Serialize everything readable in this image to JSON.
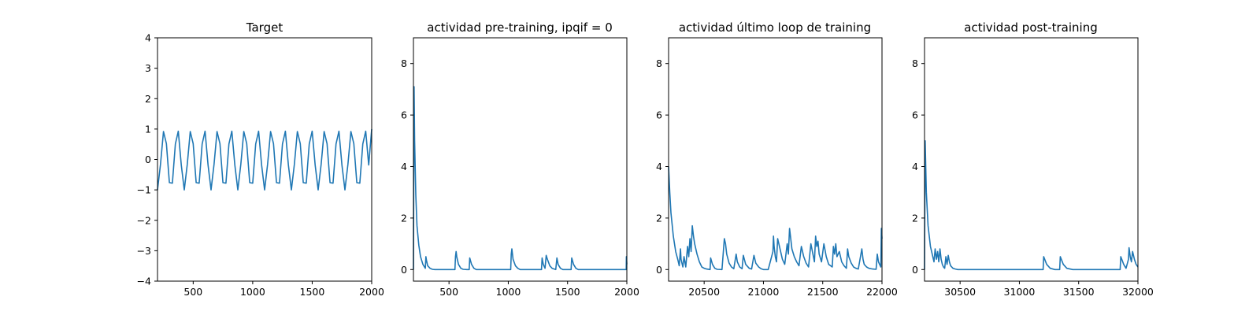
{
  "chart_data": [
    {
      "type": "line",
      "title": "Target",
      "xlim": [
        200,
        2000
      ],
      "ylim": [
        -4,
        4
      ],
      "xticks": [
        500,
        1000,
        1500,
        2000
      ],
      "yticks": [
        -4,
        -3,
        -2,
        -1,
        0,
        1,
        2,
        3,
        4
      ],
      "color": "#1f77b4",
      "series": [
        {
          "x": [
            200,
            225,
            250,
            275,
            300,
            325,
            350,
            375,
            400,
            425,
            450,
            475,
            500,
            525,
            550,
            575,
            600,
            625,
            650,
            675,
            700,
            725,
            750,
            775,
            800,
            825,
            850,
            875,
            900,
            925,
            950,
            975,
            1000,
            1025,
            1050,
            1075,
            1100,
            1125,
            1150,
            1175,
            1200,
            1225,
            1250,
            1275,
            1300,
            1325,
            1350,
            1375,
            1400,
            1425,
            1450,
            1475,
            1500,
            1525,
            1550,
            1575,
            1600,
            1625,
            1650,
            1675,
            1700,
            1725,
            1750,
            1775,
            1800,
            1825,
            1850,
            1875,
            1900,
            1925,
            1950,
            1975,
            2000
          ],
          "y": [
            -1,
            -0.16,
            0.92,
            0.52,
            -0.76,
            -0.78,
            0.51,
            0.93,
            -0.18,
            -1,
            -0.16,
            0.92,
            0.52,
            -0.76,
            -0.78,
            0.51,
            0.93,
            -0.18,
            -1,
            -0.16,
            0.92,
            0.52,
            -0.76,
            -0.78,
            0.51,
            0.93,
            -0.18,
            -1,
            -0.16,
            0.92,
            0.52,
            -0.76,
            -0.78,
            0.51,
            0.93,
            -0.18,
            -1,
            -0.16,
            0.92,
            0.52,
            -0.76,
            -0.78,
            0.51,
            0.93,
            -0.18,
            -1,
            -0.16,
            0.92,
            0.52,
            -0.76,
            -0.78,
            0.51,
            0.93,
            -0.18,
            -1,
            -0.16,
            0.92,
            0.52,
            -0.76,
            -0.78,
            0.51,
            0.93,
            -0.18,
            -1,
            -0.16,
            0.92,
            0.52,
            -0.76,
            -0.78,
            0.51,
            0.93,
            -0.18,
            1
          ]
        }
      ]
    },
    {
      "type": "line",
      "title": "actividad pre-training, ipqif = 0",
      "xlim": [
        200,
        2000
      ],
      "ylim": [
        -0.45,
        9
      ],
      "xticks": [
        500,
        1000,
        1500,
        2000
      ],
      "yticks": [
        0,
        2,
        4,
        6,
        8
      ],
      "color": "#1f77b4",
      "series": [
        {
          "x": [
            200,
            205,
            210,
            220,
            230,
            245,
            260,
            280,
            300,
            305,
            310,
            320,
            340,
            360,
            380,
            400,
            550,
            555,
            560,
            565,
            570,
            580,
            600,
            620,
            650,
            670,
            675,
            690,
            710,
            730,
            1020,
            1025,
            1030,
            1040,
            1060,
            1080,
            1100,
            1280,
            1285,
            1295,
            1310,
            1320,
            1330,
            1350,
            1370,
            1400,
            1410,
            1420,
            1440,
            1460,
            1530,
            1535,
            1550,
            1570,
            1590,
            1995,
            1996,
            2000
          ],
          "y": [
            0,
            7.1,
            5.0,
            2.9,
            1.7,
            0.95,
            0.5,
            0.2,
            0.05,
            0.5,
            0.35,
            0.15,
            0.05,
            0.01,
            0,
            0,
            0,
            0.5,
            0.7,
            0.5,
            0.4,
            0.2,
            0.05,
            0.01,
            0,
            0,
            0.45,
            0.2,
            0.05,
            0,
            0,
            0.6,
            0.8,
            0.4,
            0.15,
            0.05,
            0,
            0,
            0.45,
            0.2,
            0.05,
            0.55,
            0.4,
            0.15,
            0.05,
            0,
            0.45,
            0.2,
            0.05,
            0,
            0,
            0.45,
            0.2,
            0.05,
            0,
            0,
            0.5,
            0.2
          ]
        }
      ]
    },
    {
      "type": "line",
      "title": "actividad último loop de training",
      "xlim": [
        20200,
        22000
      ],
      "ylim": [
        -0.45,
        9
      ],
      "xticks": [
        20500,
        21000,
        21500,
        22000
      ],
      "yticks": [
        0,
        2,
        4,
        6,
        8
      ],
      "color": "#1f77b4",
      "series": [
        {
          "x": [
            20200,
            20210,
            20220,
            20240,
            20260,
            20280,
            20290,
            20300,
            20305,
            20320,
            20330,
            20345,
            20360,
            20370,
            20380,
            20390,
            20400,
            20410,
            20420,
            20440,
            20460,
            20480,
            20500,
            20520,
            20550,
            20555,
            20570,
            20590,
            20610,
            20650,
            20670,
            20680,
            20690,
            20710,
            20730,
            20750,
            20770,
            20780,
            20800,
            20820,
            20830,
            20850,
            20880,
            20900,
            20920,
            20935,
            20960,
            20980,
            21000,
            21040,
            21080,
            21085,
            21090,
            21100,
            21110,
            21120,
            21140,
            21160,
            21180,
            21200,
            21210,
            21220,
            21230,
            21240,
            21260,
            21280,
            21300,
            21320,
            21340,
            21360,
            21380,
            21400,
            21430,
            21440,
            21450,
            21460,
            21470,
            21490,
            21510,
            21530,
            21550,
            21580,
            21590,
            21600,
            21610,
            21620,
            21640,
            21660,
            21680,
            21700,
            21710,
            21720,
            21740,
            21760,
            21780,
            21800,
            21830,
            21840,
            21850,
            21870,
            21890,
            21920,
            21950,
            21960,
            21970,
            21990,
            21995,
            22000
          ],
          "y": [
            4.0,
            3.0,
            2.2,
            1.3,
            0.7,
            0.35,
            0.15,
            0.8,
            0.4,
            0.1,
            0.5,
            0.1,
            0.9,
            0.5,
            1.2,
            0.7,
            1.7,
            1.3,
            1.0,
            0.6,
            0.3,
            0.1,
            0.05,
            0.02,
            0,
            0.45,
            0.2,
            0.05,
            0.01,
            0,
            1.2,
            1.0,
            0.6,
            0.25,
            0.1,
            0.03,
            0.6,
            0.3,
            0.1,
            0.03,
            0.55,
            0.2,
            0.05,
            0.02,
            0.55,
            0.25,
            0.1,
            0.03,
            0,
            0,
            0.7,
            1.3,
            0.9,
            0.5,
            0.3,
            1.2,
            0.8,
            0.4,
            0.2,
            1.0,
            0.6,
            1.6,
            1.2,
            0.8,
            0.5,
            0.3,
            0.15,
            0.9,
            0.5,
            0.25,
            0.1,
            1.0,
            0.3,
            1.3,
            0.9,
            1.1,
            0.6,
            0.3,
            1.0,
            0.5,
            0.2,
            0.1,
            0.9,
            0.6,
            1.0,
            0.5,
            0.7,
            0.3,
            0.15,
            0.05,
            0.8,
            0.5,
            0.25,
            0.1,
            0.05,
            0.02,
            0.8,
            0.4,
            0.2,
            0.1,
            0.05,
            0.02,
            0.01,
            0.6,
            0.3,
            0.1,
            1.6,
            1.2
          ]
        }
      ]
    },
    {
      "type": "line",
      "title": "actividad post-training",
      "xlim": [
        30200,
        32000
      ],
      "ylim": [
        -0.45,
        9
      ],
      "xticks": [
        30500,
        31000,
        31500,
        32000
      ],
      "yticks": [
        0,
        2,
        4,
        6,
        8
      ],
      "color": "#1f77b4",
      "series": [
        {
          "x": [
            30200,
            30205,
            30215,
            30230,
            30250,
            30270,
            30280,
            30290,
            30300,
            30310,
            30320,
            30330,
            30340,
            30350,
            30360,
            30370,
            30380,
            30390,
            30400,
            30410,
            30420,
            30440,
            30460,
            30480,
            30500,
            30600,
            31200,
            31205,
            31230,
            31260,
            31300,
            31340,
            31345,
            31370,
            31400,
            31450,
            31800,
            31850,
            31855,
            31880,
            31900,
            31920,
            31925,
            31935,
            31945,
            31955,
            31970,
            31985,
            32000
          ],
          "y": [
            0,
            5.0,
            3.0,
            1.7,
            0.9,
            0.5,
            0.3,
            0.8,
            0.4,
            0.7,
            0.3,
            0.8,
            0.4,
            0.2,
            0.1,
            0.05,
            0.5,
            0.2,
            0.55,
            0.3,
            0.15,
            0.05,
            0.02,
            0,
            0,
            0,
            0,
            0.5,
            0.2,
            0.05,
            0,
            0,
            0.5,
            0.2,
            0.05,
            0,
            0,
            0,
            0.5,
            0.2,
            0.05,
            0.4,
            0.85,
            0.5,
            0.3,
            0.7,
            0.4,
            0.2,
            0.1
          ]
        }
      ]
    }
  ]
}
